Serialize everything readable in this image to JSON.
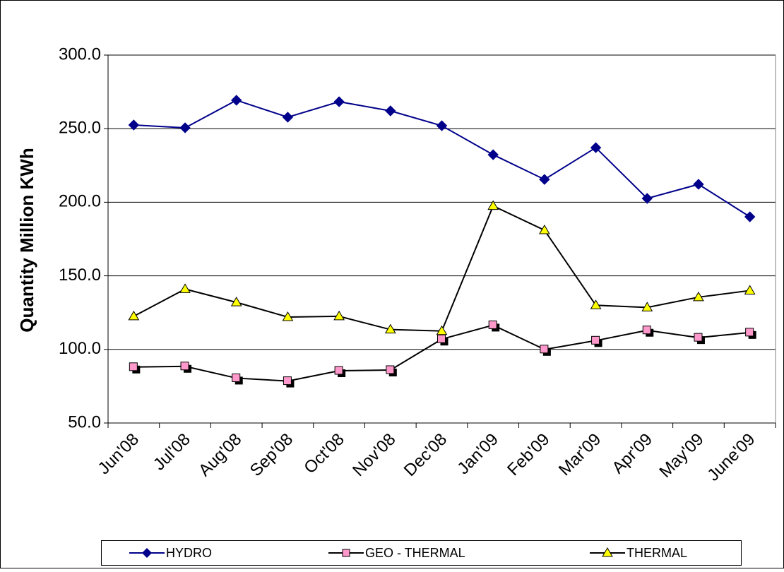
{
  "chart_data": {
    "type": "line",
    "y_label": "Quantity Million KWh",
    "categories": [
      "Jun'08",
      "Jul'08",
      "Aug'08",
      "Sep'08",
      "Oct'08",
      "Nov'08",
      "Dec'08",
      "Jan'09",
      "Feb'09",
      "Mar'09",
      "Apr'09",
      "May'09",
      "June'09"
    ],
    "series": [
      {
        "name": "HYDRO",
        "color": "#00008b",
        "marker": "diamond",
        "values": [
          252.5,
          250.6,
          269.3,
          257.8,
          268.3,
          262.1,
          252.0,
          232.3,
          215.5,
          237.1,
          202.6,
          212.2,
          190.1
        ]
      },
      {
        "name": "GEO - THERMAL",
        "color": "#ff99cc",
        "marker": "square",
        "values": [
          88,
          88.5,
          80.5,
          78.5,
          85.5,
          86,
          107,
          116.5,
          100,
          106,
          113,
          108,
          111.5
        ]
      },
      {
        "name": "THERMAL",
        "color": "#ffff00",
        "marker": "triangle",
        "values": [
          122.5,
          141,
          132,
          122,
          122.5,
          113.5,
          112.5,
          197.5,
          181,
          130,
          128.5,
          135.5,
          140
        ]
      }
    ],
    "ylim": [
      50,
      300
    ],
    "yticks": [
      {
        "value": 50,
        "label": "50.0"
      },
      {
        "value": 100,
        "label": "100.0"
      },
      {
        "value": 150,
        "label": "150.0"
      },
      {
        "value": 200,
        "label": "200.0"
      },
      {
        "value": 250,
        "label": "250.0"
      },
      {
        "value": 300,
        "label": "300.0"
      }
    ],
    "grid": true,
    "legend": "bottom"
  }
}
